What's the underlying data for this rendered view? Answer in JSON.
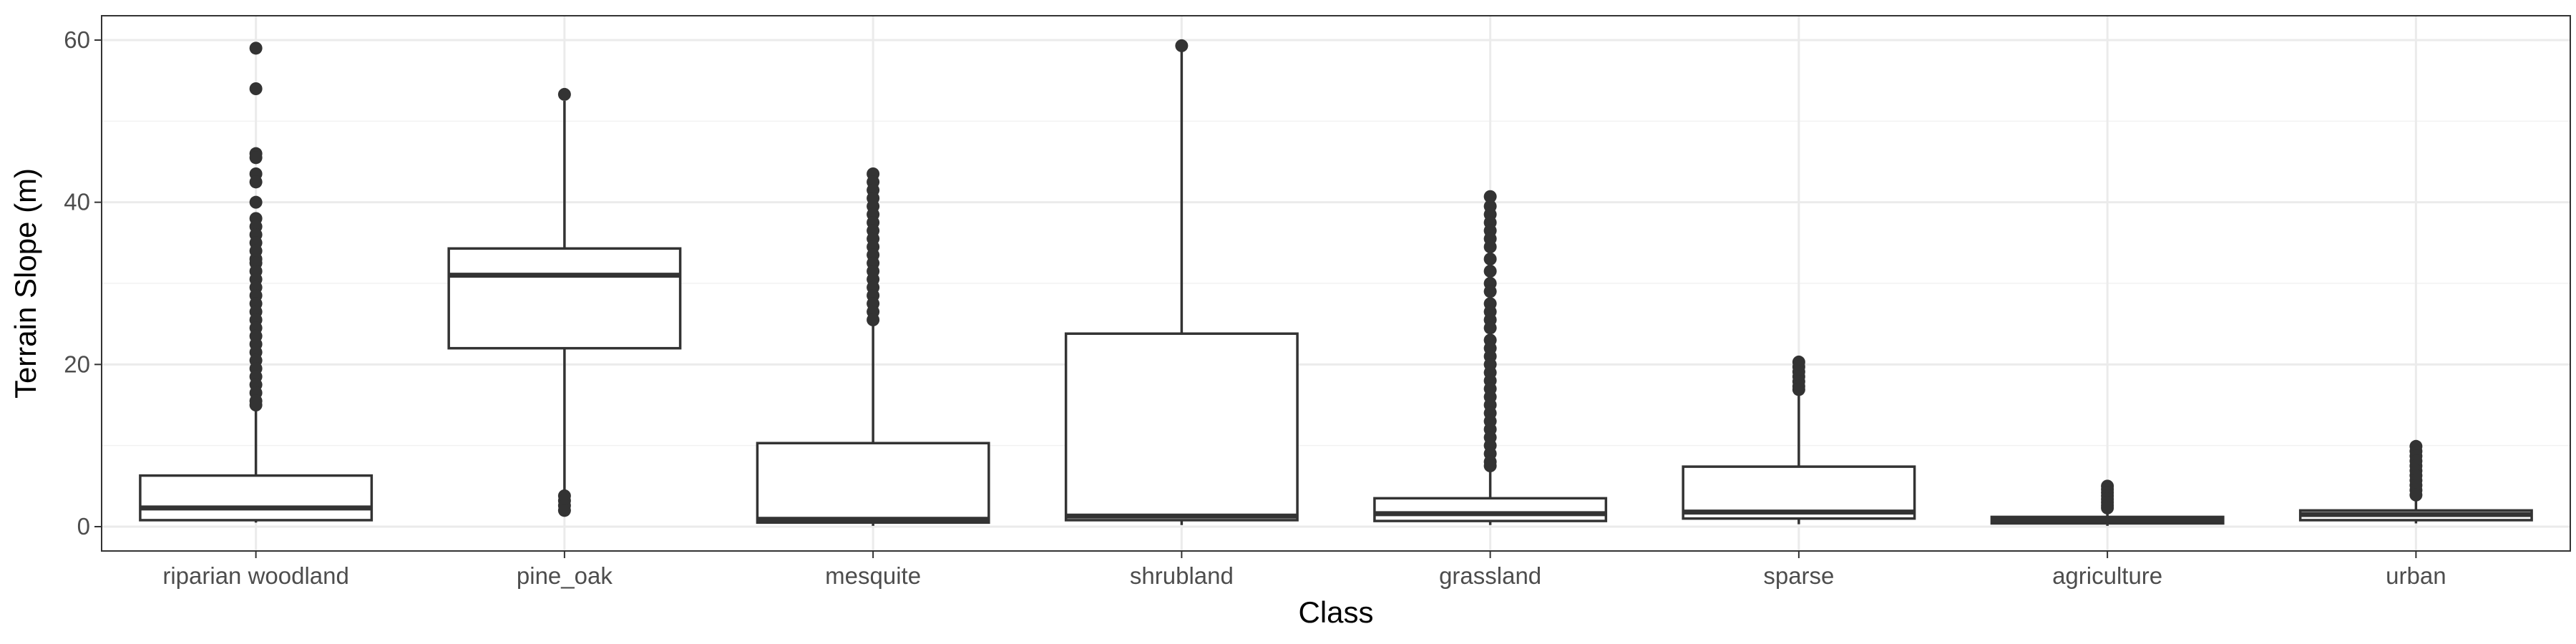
{
  "chart_data": {
    "type": "boxplot",
    "title": "",
    "xlabel": "Class",
    "ylabel": "Terrain Slope (m)",
    "ylim": [
      -3,
      63
    ],
    "yticks": [
      0,
      20,
      40,
      60
    ],
    "grid": true,
    "categories": [
      "riparian woodland",
      "pine_oak",
      "mesquite",
      "shrubland",
      "grassland",
      "sparse",
      "agriculture",
      "urban"
    ],
    "boxes": [
      {
        "name": "riparian woodland",
        "whisker_low": 0.5,
        "q1": 0.8,
        "median": 2.3,
        "q3": 6.3,
        "whisker_high": 14.5,
        "outliers": [
          59,
          54,
          46,
          45.5,
          43.5,
          42.5,
          40,
          38,
          37,
          36,
          35,
          34,
          33,
          32.5,
          31.5,
          30.5,
          29.5,
          28.5,
          27.5,
          26.5,
          25.5,
          24.5,
          23.5,
          22.5,
          21.5,
          20.5,
          19.5,
          18.5,
          17.5,
          16.5,
          15.5,
          15
        ]
      },
      {
        "name": "pine_oak",
        "whisker_low": 4,
        "q1": 22,
        "median": 31,
        "q3": 34.3,
        "whisker_high": 52.5,
        "outliers": [
          53.3,
          3.8,
          3.2,
          2.6,
          2
        ]
      },
      {
        "name": "mesquite",
        "whisker_low": 0.1,
        "q1": 0.5,
        "median": 0.9,
        "q3": 10.3,
        "whisker_high": 25,
        "outliers": [
          43.5,
          42.5,
          41.5,
          40.5,
          39.5,
          38.5,
          37.5,
          36.5,
          35.5,
          34.5,
          33.5,
          32.5,
          31.5,
          30.5,
          29.5,
          28.5,
          27.5,
          26.5,
          25.5
        ]
      },
      {
        "name": "shrubland",
        "whisker_low": 0.2,
        "q1": 0.8,
        "median": 1.3,
        "q3": 23.8,
        "whisker_high": 59,
        "outliers": [
          59.3
        ]
      },
      {
        "name": "grassland",
        "whisker_low": 0.2,
        "q1": 0.7,
        "median": 1.6,
        "q3": 3.5,
        "whisker_high": 7.3,
        "outliers": [
          40.7,
          39.5,
          38.5,
          37.5,
          36.5,
          35.5,
          34.5,
          33,
          31.5,
          30,
          29,
          27.5,
          26.5,
          25.5,
          24.5,
          23,
          22,
          21,
          20,
          19,
          18,
          17,
          16,
          15,
          14,
          13,
          12,
          11,
          10,
          9,
          8,
          7.5
        ]
      },
      {
        "name": "sparse",
        "whisker_low": 0.3,
        "q1": 1.0,
        "median": 1.8,
        "q3": 7.4,
        "whisker_high": 16.5,
        "outliers": [
          20.3,
          19.7,
          19.1,
          18.5,
          17.9,
          17.3,
          16.9
        ]
      },
      {
        "name": "agriculture",
        "whisker_low": 0.1,
        "q1": 0.4,
        "median": 0.8,
        "q3": 1.2,
        "whisker_high": 2.0,
        "outliers": [
          5.0,
          4.6,
          4.2,
          3.8,
          3.4,
          3.0,
          2.6,
          2.3
        ]
      },
      {
        "name": "urban",
        "whisker_low": 0.4,
        "q1": 0.8,
        "median": 1.5,
        "q3": 2.0,
        "whisker_high": 3.5,
        "outliers": [
          9.9,
          9.3,
          8.7,
          8.1,
          7.5,
          6.9,
          6.3,
          5.7,
          5.1,
          4.5,
          3.9
        ]
      }
    ]
  }
}
